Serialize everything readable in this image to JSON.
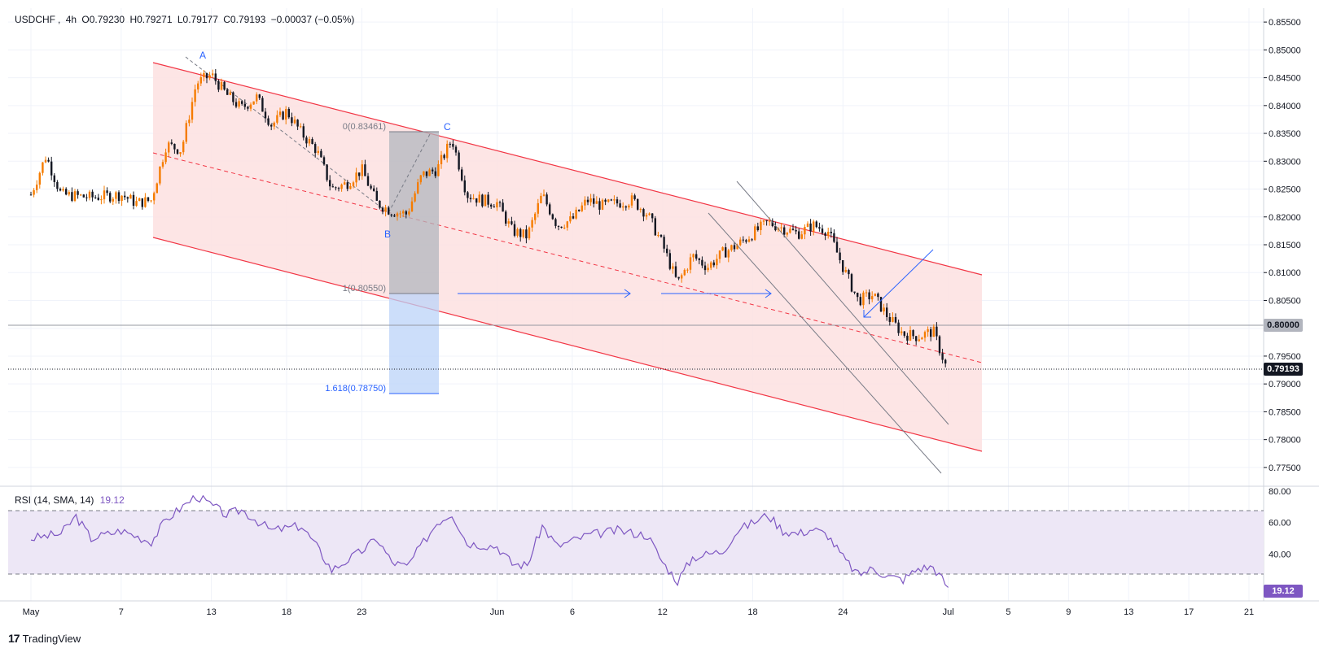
{
  "header": {
    "symbol": "USDCHF",
    "interval": "4h",
    "open": "O0.79230",
    "high": "H0.79271",
    "low": "L0.79177",
    "close": "C0.79193",
    "change": "−0.00037 (−0.05%)"
  },
  "rsi": {
    "label": "RSI (14, SMA, 14)",
    "value": "19.12",
    "badge": "19.12"
  },
  "branding": {
    "logo": "17",
    "name": "TradingView"
  },
  "price_badges": {
    "level": "0.80000",
    "last": "0.79193"
  },
  "colors": {
    "bull": "#f57c00",
    "bear": "#131722",
    "channel": "#f23645",
    "channel_fill": "#fde0e0",
    "rsi_line": "#7e57c2",
    "rsi_band": "#ede7f6",
    "fib_upper": "#b2b5be",
    "fib_lower": "#bbd3f8",
    "arrow": "#2962ff",
    "label": "#2962ff"
  },
  "chart_data": [
    {
      "type": "candlestick",
      "title": "USDCHF, 4h",
      "x_ticks": [
        "May",
        "7",
        "13",
        "18",
        "23",
        "Jun",
        "6",
        "12",
        "18",
        "24",
        "Jul",
        "5",
        "9",
        "13",
        "17",
        "21"
      ],
      "y_ticks": [
        "0.85500",
        "0.85000",
        "0.84500",
        "0.84000",
        "0.83500",
        "0.83000",
        "0.82500",
        "0.82000",
        "0.81500",
        "0.81000",
        "0.80500",
        "0.80000",
        "0.79500",
        "0.79000",
        "0.78500",
        "0.78000",
        "0.77500"
      ],
      "ylim": [
        0.7725,
        0.8575
      ],
      "close_path": [
        {
          "date": "2024-05-01",
          "close": 0.824
        },
        {
          "date": "2024-05-02",
          "close": 0.831
        },
        {
          "date": "2024-05-03",
          "close": 0.824
        },
        {
          "date": "2024-05-05",
          "close": 0.8235
        },
        {
          "date": "2024-05-07",
          "close": 0.824
        },
        {
          "date": "2024-05-08",
          "close": 0.8225
        },
        {
          "date": "2024-05-09",
          "close": 0.823
        },
        {
          "date": "2024-05-10",
          "close": 0.833
        },
        {
          "date": "2024-05-11",
          "close": 0.832
        },
        {
          "date": "2024-05-12",
          "close": 0.844
        },
        {
          "date": "2024-05-13",
          "close": 0.8455
        },
        {
          "date": "2024-05-14",
          "close": 0.842
        },
        {
          "date": "2024-05-15",
          "close": 0.8395
        },
        {
          "date": "2024-05-16",
          "close": 0.8415
        },
        {
          "date": "2024-05-17",
          "close": 0.8365
        },
        {
          "date": "2024-05-18",
          "close": 0.839
        },
        {
          "date": "2024-05-19",
          "close": 0.835
        },
        {
          "date": "2024-05-20",
          "close": 0.832
        },
        {
          "date": "2024-05-21",
          "close": 0.825
        },
        {
          "date": "2024-05-22",
          "close": 0.826
        },
        {
          "date": "2024-05-23",
          "close": 0.8285
        },
        {
          "date": "2024-05-24",
          "close": 0.8225
        },
        {
          "date": "2024-05-25",
          "close": 0.821
        },
        {
          "date": "2024-05-26",
          "close": 0.8205
        },
        {
          "date": "2024-05-27",
          "close": 0.8275
        },
        {
          "date": "2024-05-28",
          "close": 0.8285
        },
        {
          "date": "2024-05-29",
          "close": 0.834
        },
        {
          "date": "2024-05-30",
          "close": 0.824
        },
        {
          "date": "2024-05-31",
          "close": 0.823
        },
        {
          "date": "2024-06-01",
          "close": 0.8225
        },
        {
          "date": "2024-06-02",
          "close": 0.8175
        },
        {
          "date": "2024-06-03",
          "close": 0.8165
        },
        {
          "date": "2024-06-04",
          "close": 0.824
        },
        {
          "date": "2024-06-05",
          "close": 0.8185
        },
        {
          "date": "2024-06-06",
          "close": 0.8195
        },
        {
          "date": "2024-06-07",
          "close": 0.823
        },
        {
          "date": "2024-06-08",
          "close": 0.822
        },
        {
          "date": "2024-06-09",
          "close": 0.8225
        },
        {
          "date": "2024-06-10",
          "close": 0.823
        },
        {
          "date": "2024-06-11",
          "close": 0.8205
        },
        {
          "date": "2024-06-12",
          "close": 0.815
        },
        {
          "date": "2024-06-13",
          "close": 0.808
        },
        {
          "date": "2024-06-14",
          "close": 0.813
        },
        {
          "date": "2024-06-15",
          "close": 0.811
        },
        {
          "date": "2024-06-16",
          "close": 0.8135
        },
        {
          "date": "2024-06-17",
          "close": 0.815
        },
        {
          "date": "2024-06-18",
          "close": 0.817
        },
        {
          "date": "2024-06-19",
          "close": 0.819
        },
        {
          "date": "2024-06-20",
          "close": 0.818
        },
        {
          "date": "2024-06-21",
          "close": 0.817
        },
        {
          "date": "2024-06-22",
          "close": 0.8185
        },
        {
          "date": "2024-06-23",
          "close": 0.8175
        },
        {
          "date": "2024-06-24",
          "close": 0.811
        },
        {
          "date": "2024-06-25",
          "close": 0.805
        },
        {
          "date": "2024-06-26",
          "close": 0.806
        },
        {
          "date": "2024-06-27",
          "close": 0.802
        },
        {
          "date": "2024-06-28",
          "close": 0.799
        },
        {
          "date": "2024-06-29",
          "close": 0.7985
        },
        {
          "date": "2024-06-30",
          "close": 0.7995
        },
        {
          "date": "2024-07-01",
          "close": 0.792
        }
      ],
      "annotations": {
        "abc_labels": [
          "A",
          "B",
          "C"
        ],
        "fib_labels": [
          "0(0.83461)",
          "1(0.80550)",
          "1.618(0.78750)"
        ],
        "fib_levels": [
          0.83461,
          0.8055,
          0.7875
        ],
        "horizontal_level": 0.8,
        "last_price": 0.79193
      }
    },
    {
      "type": "line",
      "title": "RSI (14, SMA, 14)",
      "y_ticks": [
        "80.00",
        "60.00",
        "40.00"
      ],
      "ylim": [
        12,
        82
      ],
      "bands": [
        30,
        70
      ],
      "x_ticks": [
        "May",
        "7",
        "13",
        "18",
        "23",
        "Jun",
        "6",
        "12",
        "18",
        "24",
        "Jul",
        "5",
        "9",
        "13",
        "17",
        "21"
      ],
      "rsi_path": [
        {
          "date": "2024-05-01",
          "rsi": 50
        },
        {
          "date": "2024-05-03",
          "rsi": 53
        },
        {
          "date": "2024-05-04",
          "rsi": 64
        },
        {
          "date": "2024-05-05",
          "rsi": 50
        },
        {
          "date": "2024-05-07",
          "rsi": 55
        },
        {
          "date": "2024-05-09",
          "rsi": 48
        },
        {
          "date": "2024-05-10",
          "rsi": 62
        },
        {
          "date": "2024-05-12",
          "rsi": 77
        },
        {
          "date": "2024-05-14",
          "rsi": 65
        },
        {
          "date": "2024-05-15",
          "rsi": 68
        },
        {
          "date": "2024-05-17",
          "rsi": 55
        },
        {
          "date": "2024-05-19",
          "rsi": 58
        },
        {
          "date": "2024-05-20",
          "rsi": 45
        },
        {
          "date": "2024-05-21",
          "rsi": 30
        },
        {
          "date": "2024-05-23",
          "rsi": 42
        },
        {
          "date": "2024-05-24",
          "rsi": 50
        },
        {
          "date": "2024-05-25",
          "rsi": 35
        },
        {
          "date": "2024-05-26",
          "rsi": 32
        },
        {
          "date": "2024-05-28",
          "rsi": 60
        },
        {
          "date": "2024-05-29",
          "rsi": 66
        },
        {
          "date": "2024-05-30",
          "rsi": 47
        },
        {
          "date": "2024-06-01",
          "rsi": 45
        },
        {
          "date": "2024-06-02",
          "rsi": 34
        },
        {
          "date": "2024-06-03",
          "rsi": 33
        },
        {
          "date": "2024-06-04",
          "rsi": 58
        },
        {
          "date": "2024-06-05",
          "rsi": 45
        },
        {
          "date": "2024-06-07",
          "rsi": 52
        },
        {
          "date": "2024-06-09",
          "rsi": 55
        },
        {
          "date": "2024-06-11",
          "rsi": 52
        },
        {
          "date": "2024-06-12",
          "rsi": 35
        },
        {
          "date": "2024-06-13",
          "rsi": 23
        },
        {
          "date": "2024-06-14",
          "rsi": 38
        },
        {
          "date": "2024-06-16",
          "rsi": 42
        },
        {
          "date": "2024-06-17",
          "rsi": 55
        },
        {
          "date": "2024-06-19",
          "rsi": 65
        },
        {
          "date": "2024-06-20",
          "rsi": 55
        },
        {
          "date": "2024-06-21",
          "rsi": 53
        },
        {
          "date": "2024-06-22",
          "rsi": 56
        },
        {
          "date": "2024-06-23",
          "rsi": 52
        },
        {
          "date": "2024-06-24",
          "rsi": 38
        },
        {
          "date": "2024-06-25",
          "rsi": 27
        },
        {
          "date": "2024-06-26",
          "rsi": 31
        },
        {
          "date": "2024-06-27",
          "rsi": 26
        },
        {
          "date": "2024-06-28",
          "rsi": 24
        },
        {
          "date": "2024-06-29",
          "rsi": 31
        },
        {
          "date": "2024-06-30",
          "rsi": 32
        },
        {
          "date": "2024-07-01",
          "rsi": 19
        }
      ]
    }
  ]
}
